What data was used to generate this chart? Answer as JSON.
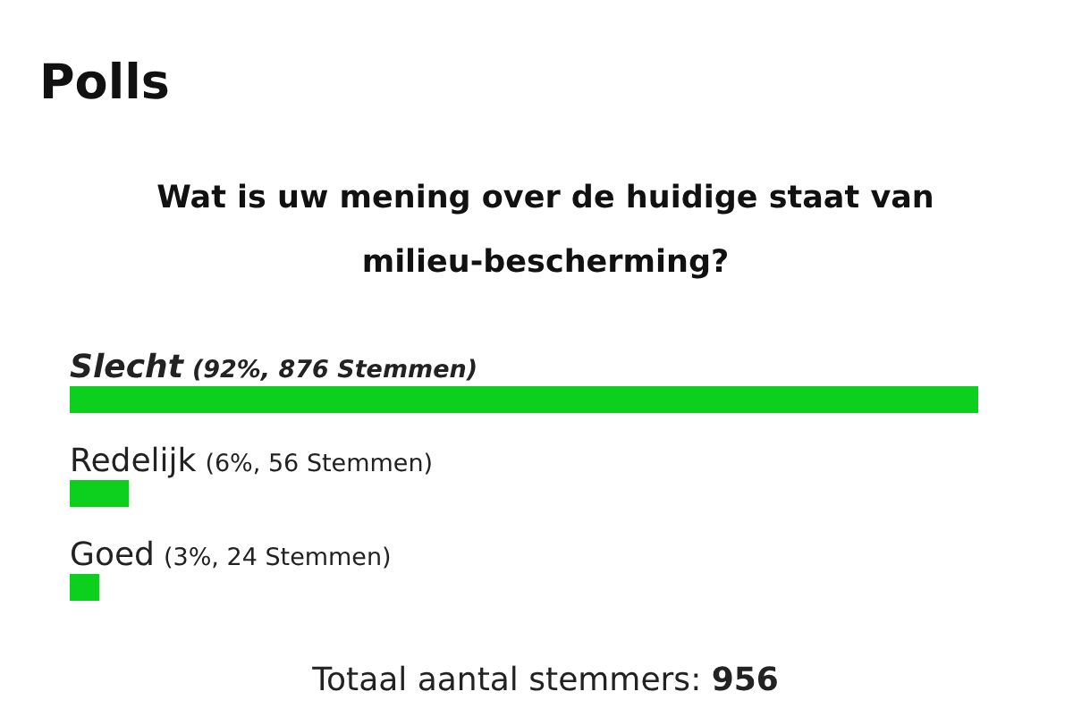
{
  "chart_data": {
    "type": "bar",
    "orientation": "horizontal",
    "title": "Polls",
    "subtitle": "Wat is uw mening over de huidige staat van milieu-bescherming?",
    "categories": [
      "Slecht",
      "Redelijk",
      "Goed"
    ],
    "values": [
      92,
      6,
      3
    ],
    "value_labels": [
      "(92%, 876 Stemmen)",
      "(6%, 56 Stemmen)",
      "(3%, 24 Stemmen)"
    ],
    "color": "#0ccf1e",
    "annotations": [
      "Totaal aantal stemmers: 956"
    ]
  }
}
